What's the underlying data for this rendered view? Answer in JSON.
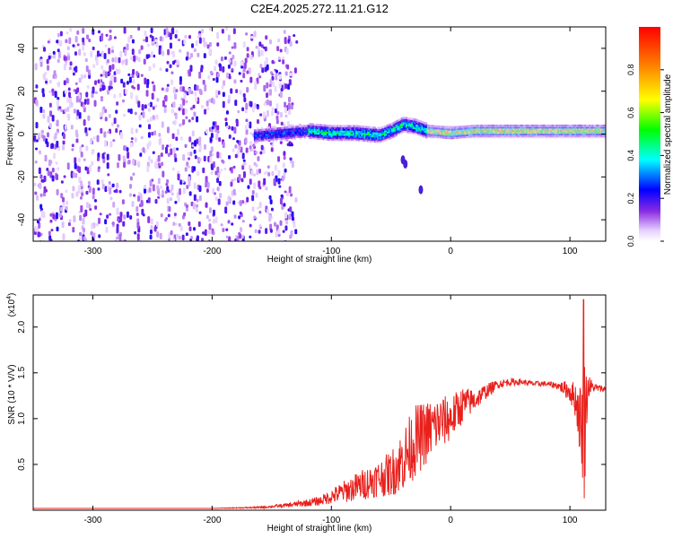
{
  "title": "C2E4.2025.272.11.21.G12",
  "chart_data": [
    {
      "type": "heatmap",
      "xlabel": "Height of straight line (km)",
      "ylabel": "Frequency (Hz)",
      "xlim": [
        -350,
        130
      ],
      "ylim": [
        -50,
        50
      ],
      "xticks": [
        -300,
        -200,
        -100,
        0,
        100
      ],
      "yticks": [
        -40,
        -20,
        0,
        20,
        40
      ],
      "colorbar": {
        "label": "Normalized spectral amplitude",
        "range": [
          0,
          1
        ],
        "ticks": [
          0.0,
          0.2,
          0.4,
          0.6,
          0.8
        ],
        "tick_labels": [
          "0.0",
          "0.2",
          "0.4",
          "0.6",
          "0.8"
        ]
      },
      "description_points": {
        "noise_region_x": [
          -350,
          -130
        ],
        "signal_center_freq": [
          [
            -160,
            0
          ],
          [
            -140,
            1
          ],
          [
            -120,
            2
          ],
          [
            -100,
            1
          ],
          [
            -80,
            1
          ],
          [
            -60,
            0
          ],
          [
            -50,
            2
          ],
          [
            -40,
            5
          ],
          [
            -30,
            4
          ],
          [
            -20,
            2
          ],
          [
            0,
            1
          ],
          [
            20,
            2
          ],
          [
            40,
            2
          ],
          [
            60,
            2
          ],
          [
            80,
            2
          ],
          [
            100,
            2
          ],
          [
            120,
            2
          ],
          [
            130,
            2
          ]
        ]
      }
    },
    {
      "type": "line",
      "xlabel": "Height of straight line (km)",
      "ylabel": "SNR (10 * V/V)",
      "y_scale_label": "(x10",
      "y_scale_exp": "4",
      "y_scale_close": ")",
      "xlim": [
        -350,
        130
      ],
      "ylim": [
        0,
        2.35
      ],
      "xticks": [
        -300,
        -200,
        -100,
        0,
        100
      ],
      "yticks": [
        0.5,
        1.0,
        1.5,
        2.0
      ],
      "ytick_labels": [
        "0.5",
        "1.0",
        "1.5",
        "2.0"
      ],
      "series": [
        {
          "color": "#e8201c",
          "x": [
            -350,
            -300,
            -250,
            -200,
            -160,
            -140,
            -120,
            -110,
            -100,
            -90,
            -80,
            -70,
            -60,
            -50,
            -40,
            -30,
            -20,
            -10,
            0,
            10,
            20,
            30,
            40,
            50,
            60,
            70,
            80,
            90,
            100,
            105,
            110,
            112,
            115,
            120,
            130
          ],
          "y": [
            0.02,
            0.02,
            0.02,
            0.02,
            0.03,
            0.05,
            0.08,
            0.1,
            0.15,
            0.2,
            0.25,
            0.3,
            0.35,
            0.4,
            0.55,
            0.75,
            0.85,
            0.95,
            1.0,
            1.15,
            1.2,
            1.3,
            1.38,
            1.4,
            1.4,
            1.38,
            1.38,
            1.36,
            1.3,
            1.2,
            0.9,
            0.9,
            1.35,
            1.34,
            1.32
          ],
          "noise_amplitude": [
            0,
            0,
            0,
            0,
            0.01,
            0.02,
            0.04,
            0.05,
            0.08,
            0.12,
            0.15,
            0.18,
            0.2,
            0.25,
            0.35,
            0.4,
            0.35,
            0.3,
            0.25,
            0.2,
            0.12,
            0.08,
            0.05,
            0.04,
            0.03,
            0.03,
            0.03,
            0.04,
            0.12,
            0.2,
            0.5,
            0.8,
            0.15,
            0.05,
            0.03
          ]
        }
      ]
    }
  ]
}
